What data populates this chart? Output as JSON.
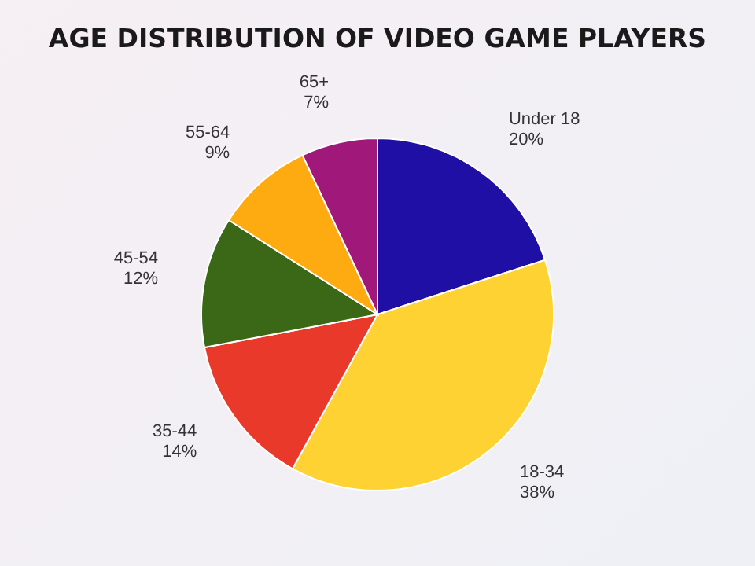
{
  "chart_data": {
    "type": "pie",
    "title": "AGE DISTRIBUTION OF VIDEO GAME PLAYERS",
    "categories": [
      "Under 18",
      "18-34",
      "35-44",
      "45-54",
      "55-64",
      "65+"
    ],
    "values": [
      20,
      38,
      14,
      12,
      9,
      7
    ],
    "value_labels": [
      "20%",
      "38%",
      "14%",
      "12%",
      "9%",
      "7%"
    ],
    "colors": [
      "#1f0fa5",
      "#fdd232",
      "#e8392a",
      "#3a6816",
      "#fdab10",
      "#a0187a"
    ]
  }
}
